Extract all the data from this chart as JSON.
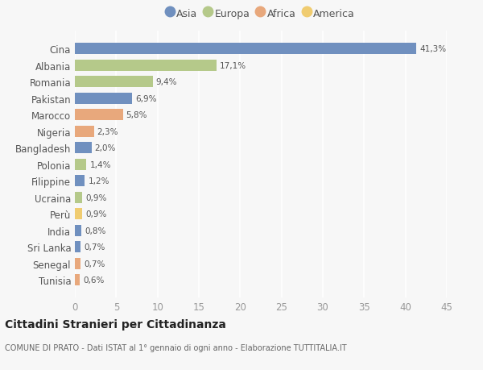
{
  "countries": [
    "Cina",
    "Albania",
    "Romania",
    "Pakistan",
    "Marocco",
    "Nigeria",
    "Bangladesh",
    "Polonia",
    "Filippine",
    "Ucraina",
    "Perù",
    "India",
    "Sri Lanka",
    "Senegal",
    "Tunisia"
  ],
  "values": [
    41.3,
    17.1,
    9.4,
    6.9,
    5.8,
    2.3,
    2.0,
    1.4,
    1.2,
    0.9,
    0.9,
    0.8,
    0.7,
    0.7,
    0.6
  ],
  "labels": [
    "41,3%",
    "17,1%",
    "9,4%",
    "6,9%",
    "5,8%",
    "2,3%",
    "2,0%",
    "1,4%",
    "1,2%",
    "0,9%",
    "0,9%",
    "0,8%",
    "0,7%",
    "0,7%",
    "0,6%"
  ],
  "continents": [
    "Asia",
    "Europa",
    "Europa",
    "Asia",
    "Africa",
    "Africa",
    "Asia",
    "Europa",
    "Asia",
    "Europa",
    "America",
    "Asia",
    "Asia",
    "Africa",
    "Africa"
  ],
  "colors": {
    "Asia": "#7090bf",
    "Europa": "#b5c98a",
    "Africa": "#e8a87c",
    "America": "#f0cc70"
  },
  "legend_order": [
    "Asia",
    "Europa",
    "Africa",
    "America"
  ],
  "title": "Cittadini Stranieri per Cittadinanza",
  "subtitle": "COMUNE DI PRATO - Dati ISTAT al 1° gennaio di ogni anno - Elaborazione TUTTITALIA.IT",
  "xlim": [
    0,
    45
  ],
  "xticks": [
    0,
    5,
    10,
    15,
    20,
    25,
    30,
    35,
    40,
    45
  ],
  "bg_color": "#f7f7f7",
  "grid_color": "#ffffff",
  "bar_height": 0.68
}
